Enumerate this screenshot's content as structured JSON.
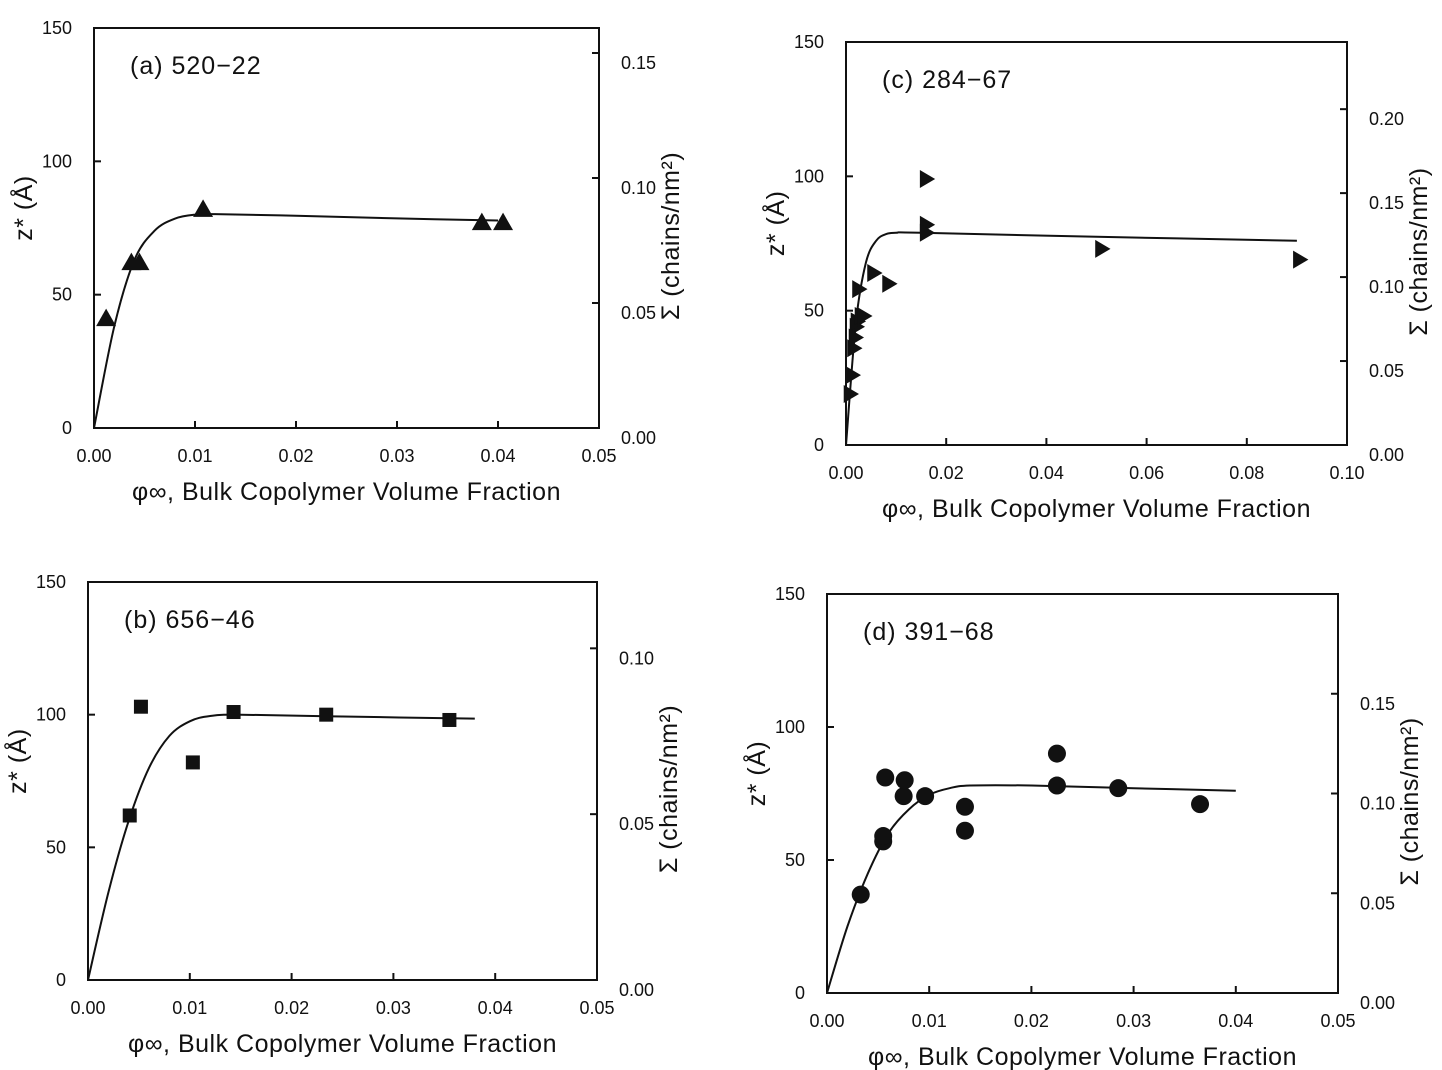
{
  "chart_data": [
    {
      "panel_label": "(a) 520-22",
      "type": "scatter",
      "marker": "triangle-up",
      "xlabel": "φ∞, Bulk Copolymer Volume Fraction",
      "ylabel": "z* (Å)",
      "y2label": "Σ (chains/nm²)",
      "xlim": [
        0,
        0.05
      ],
      "ylim": [
        0,
        150
      ],
      "y2lim": [
        0,
        0.16
      ],
      "xticks": [
        "0.00",
        "0.01",
        "0.02",
        "0.03",
        "0.04",
        "0.05"
      ],
      "yticks": [
        "0",
        "50",
        "100",
        "150"
      ],
      "y2ticks": [
        "0.00",
        "0.05",
        "0.10",
        "0.15"
      ],
      "x": [
        0.0012,
        0.0037,
        0.0045,
        0.0108,
        0.0384,
        0.0405
      ],
      "y": [
        41,
        62,
        62,
        82,
        77,
        77
      ],
      "fit": {
        "x": [
          0,
          0.002,
          0.004,
          0.006,
          0.008,
          0.01,
          0.012,
          0.02,
          0.03,
          0.04
        ],
        "y": [
          0,
          38,
          63,
          74,
          78.5,
          80,
          80.2,
          79.6,
          78.6,
          77.8
        ]
      }
    },
    {
      "panel_label": "(b) 656-46",
      "type": "scatter",
      "marker": "square",
      "xlabel": "φ∞, Bulk Copolymer Volume Fraction",
      "ylabel": "z* (Å)",
      "y2label": "Σ (chains/nm²)",
      "xlim": [
        0,
        0.05
      ],
      "ylim": [
        0,
        150
      ],
      "y2lim": [
        0,
        0.12
      ],
      "xticks": [
        "0.00",
        "0.01",
        "0.02",
        "0.03",
        "0.04",
        "0.05"
      ],
      "yticks": [
        "0",
        "50",
        "100",
        "150"
      ],
      "y2ticks": [
        "0.00",
        "0.05",
        "0.10"
      ],
      "x": [
        0.0041,
        0.0052,
        0.0103,
        0.0143,
        0.0234,
        0.0355
      ],
      "y": [
        62,
        103,
        82,
        101,
        100,
        98
      ],
      "fit": {
        "x": [
          0,
          0.002,
          0.004,
          0.006,
          0.008,
          0.01,
          0.012,
          0.015,
          0.025,
          0.038
        ],
        "y": [
          0,
          33,
          60,
          80,
          92,
          97.5,
          99.5,
          100,
          99.3,
          98.5
        ]
      }
    },
    {
      "panel_label": "(c) 284-67",
      "type": "scatter",
      "marker": "triangle-right",
      "xlabel": "φ∞, Bulk Copolymer Volume Fraction",
      "ylabel": "z* (Å)",
      "y2label": "Σ (chains/nm²)",
      "xlim": [
        0,
        0.1
      ],
      "ylim": [
        0,
        150
      ],
      "y2lim": [
        0,
        0.24
      ],
      "xticks": [
        "0.00",
        "0.02",
        "0.04",
        "0.06",
        "0.08",
        "0.10"
      ],
      "yticks": [
        "0",
        "50",
        "100",
        "150"
      ],
      "y2ticks": [
        "0.00",
        "0.05",
        "0.10",
        "0.15",
        "0.20"
      ],
      "x": [
        0.0008,
        0.0012,
        0.0015,
        0.0018,
        0.002,
        0.0022,
        0.0025,
        0.003,
        0.0035,
        0.0055,
        0.0085,
        0.016,
        0.016,
        0.016,
        0.051,
        0.0905
      ],
      "y": [
        19,
        26,
        36,
        40,
        44,
        46,
        58,
        48,
        48,
        64,
        60,
        99,
        82,
        79,
        73,
        69
      ],
      "fit": {
        "x": [
          0,
          0.002,
          0.004,
          0.006,
          0.008,
          0.01,
          0.015,
          0.05,
          0.09
        ],
        "y": [
          0,
          46,
          68,
          76,
          78.5,
          79,
          79,
          77.5,
          76
        ]
      }
    },
    {
      "panel_label": "(d) 391-68",
      "type": "scatter",
      "marker": "circle",
      "xlabel": "φ∞, Bulk Copolymer Volume Fraction",
      "ylabel": "z* (Å)",
      "y2label": "Σ (chains/nm²)",
      "xlim": [
        0,
        0.05
      ],
      "ylim": [
        0,
        150
      ],
      "y2lim": [
        0,
        0.2
      ],
      "xticks": [
        "0.00",
        "0.01",
        "0.02",
        "0.03",
        "0.04",
        "0.05"
      ],
      "yticks": [
        "0",
        "50",
        "100",
        "150"
      ],
      "y2ticks": [
        "0.00",
        "0.05",
        "0.10",
        "0.15"
      ],
      "x": [
        0.0033,
        0.0055,
        0.0055,
        0.0057,
        0.0075,
        0.0076,
        0.0096,
        0.0135,
        0.0135,
        0.0225,
        0.0225,
        0.0285,
        0.0365
      ],
      "y": [
        37,
        57,
        59,
        81,
        74,
        80,
        74,
        70,
        61,
        90,
        78,
        77,
        71
      ],
      "fit": {
        "x": [
          0,
          0.002,
          0.004,
          0.006,
          0.008,
          0.01,
          0.012,
          0.014,
          0.02,
          0.03,
          0.04
        ],
        "y": [
          0,
          25,
          45,
          60,
          69,
          74.5,
          77,
          78,
          78,
          77,
          76
        ]
      }
    }
  ]
}
